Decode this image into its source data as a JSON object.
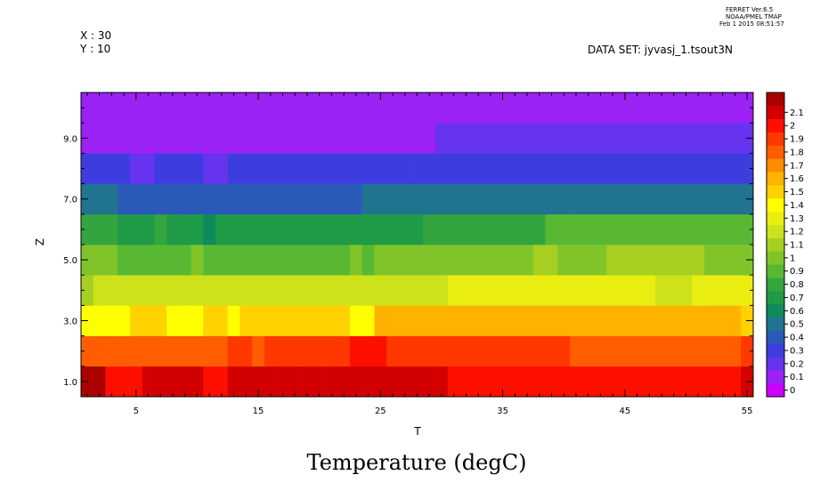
{
  "header": {
    "ferret_line1": "FERRET  Ver.6.5",
    "ferret_line2": "NOAA/PMEL TMAP",
    "ferret_line3": "Feb  1 2015 08:51:57",
    "x_label": "X : 30",
    "y_label": "Y : 10",
    "dataset": "DATA SET: jyvasj_1.tsout3N"
  },
  "chart_data": {
    "type": "heatmap",
    "title": "Temperature (degC)",
    "xlabel": "T",
    "ylabel": "Z",
    "xlim": [
      0.5,
      55.5
    ],
    "ylim": [
      0.5,
      10.5
    ],
    "x_ticks": [
      "5",
      "15",
      "25",
      "35",
      "45",
      "55"
    ],
    "x_tick_values": [
      5,
      15,
      25,
      35,
      45,
      55
    ],
    "y_ticks": [
      "1.0",
      "3.0",
      "5.0",
      "7.0",
      "9.0"
    ],
    "y_tick_values": [
      1,
      3,
      5,
      7,
      9
    ],
    "colorbar": {
      "labels": [
        "0",
        "0.1",
        "0.2",
        "0.3",
        "0.4",
        "0.5",
        "0.6",
        "0.7",
        "0.8",
        "0.9",
        "1",
        "1.1",
        "1.2",
        "1.3",
        "1.4",
        "1.5",
        "1.6",
        "1.7",
        "1.8",
        "1.9",
        "2",
        "2.1"
      ],
      "colors": [
        "#cc00ff",
        "#9a22f4",
        "#6633ee",
        "#3d3ddf",
        "#2b59b8",
        "#20748f",
        "#0f8a5c",
        "#1f9a47",
        "#34a53e",
        "#58b833",
        "#80c42a",
        "#a6cf22",
        "#cde21a",
        "#eaee10",
        "#ffff00",
        "#ffd200",
        "#ffb300",
        "#ff8c00",
        "#ff5d00",
        "#ff3800",
        "#ff0f00",
        "#d20000",
        "#aa0000"
      ]
    },
    "rows": [
      {
        "z": 1,
        "runs": [
          [
            1,
            2,
            2.1
          ],
          [
            3,
            5,
            1.95
          ],
          [
            6,
            10,
            2.0
          ],
          [
            11,
            12,
            1.95
          ],
          [
            13,
            16,
            2.0
          ],
          [
            17,
            18,
            2.05
          ],
          [
            19,
            20,
            2.0
          ],
          [
            21,
            22,
            2.05
          ],
          [
            23,
            30,
            2.0
          ],
          [
            31,
            36,
            1.95
          ],
          [
            37,
            42,
            1.9
          ],
          [
            43,
            44,
            1.95
          ],
          [
            45,
            45,
            1.9
          ],
          [
            46,
            55,
            1.95
          ],
          [
            55,
            55,
            2.05
          ]
        ]
      },
      {
        "z": 2,
        "runs": [
          [
            1,
            3,
            1.75
          ],
          [
            4,
            4,
            1.7
          ],
          [
            5,
            12,
            1.75
          ],
          [
            13,
            14,
            1.8
          ],
          [
            15,
            15,
            1.75
          ],
          [
            16,
            20,
            1.8
          ],
          [
            21,
            21,
            1.85
          ],
          [
            22,
            22,
            1.8
          ],
          [
            23,
            25,
            1.9
          ],
          [
            26,
            40,
            1.8
          ],
          [
            41,
            47,
            1.75
          ],
          [
            48,
            54,
            1.7
          ],
          [
            55,
            55,
            1.8
          ]
        ]
      },
      {
        "z": 3,
        "runs": [
          [
            1,
            1,
            1.35
          ],
          [
            2,
            3,
            1.3
          ],
          [
            4,
            4,
            1.35
          ],
          [
            5,
            7,
            1.45
          ],
          [
            8,
            10,
            1.35
          ],
          [
            11,
            12,
            1.45
          ],
          [
            13,
            13,
            1.35
          ],
          [
            14,
            21,
            1.4
          ],
          [
            22,
            22,
            1.45
          ],
          [
            23,
            24,
            1.35
          ],
          [
            25,
            54,
            1.5
          ],
          [
            55,
            55,
            1.4
          ]
        ]
      },
      {
        "z": 4,
        "runs": [
          [
            1,
            1,
            1.05
          ],
          [
            2,
            10,
            1.1
          ],
          [
            11,
            12,
            1.15
          ],
          [
            13,
            13,
            1.1
          ],
          [
            14,
            15,
            1.15
          ],
          [
            16,
            17,
            1.1
          ],
          [
            18,
            20,
            1.15
          ],
          [
            21,
            22,
            1.1
          ],
          [
            23,
            30,
            1.15
          ],
          [
            31,
            38,
            1.2
          ],
          [
            39,
            42,
            1.25
          ],
          [
            43,
            47,
            1.2
          ],
          [
            48,
            50,
            1.15
          ],
          [
            51,
            55,
            1.2
          ]
        ]
      },
      {
        "z": 5,
        "runs": [
          [
            1,
            3,
            0.9
          ],
          [
            4,
            9,
            0.85
          ],
          [
            10,
            10,
            0.9
          ],
          [
            11,
            22,
            0.85
          ],
          [
            23,
            23,
            0.9
          ],
          [
            24,
            24,
            0.85
          ],
          [
            25,
            34,
            0.9
          ],
          [
            35,
            37,
            0.95
          ],
          [
            38,
            39,
            1.0
          ],
          [
            40,
            43,
            0.95
          ],
          [
            44,
            51,
            1.0
          ],
          [
            52,
            55,
            0.95
          ]
        ]
      },
      {
        "z": 6,
        "runs": [
          [
            1,
            3,
            0.7
          ],
          [
            4,
            6,
            0.6
          ],
          [
            7,
            7,
            0.7
          ],
          [
            8,
            10,
            0.6
          ],
          [
            11,
            11,
            0.55
          ],
          [
            12,
            28,
            0.6
          ],
          [
            29,
            33,
            0.7
          ],
          [
            34,
            38,
            0.75
          ],
          [
            39,
            55,
            0.8
          ]
        ]
      },
      {
        "z": 7,
        "runs": [
          [
            1,
            3,
            0.4
          ],
          [
            4,
            8,
            0.35
          ],
          [
            9,
            11,
            0.3
          ],
          [
            12,
            23,
            0.35
          ],
          [
            24,
            40,
            0.4
          ],
          [
            41,
            44,
            0.45
          ],
          [
            45,
            54,
            0.4
          ],
          [
            55,
            55,
            0.45
          ]
        ]
      },
      {
        "z": 8,
        "runs": [
          [
            1,
            4,
            0.2
          ],
          [
            5,
            6,
            0.15
          ],
          [
            7,
            10,
            0.2
          ],
          [
            11,
            12,
            0.15
          ],
          [
            13,
            27,
            0.2
          ],
          [
            28,
            55,
            0.25
          ]
        ]
      },
      {
        "z": 9,
        "runs": [
          [
            1,
            29,
            0.05
          ],
          [
            30,
            36,
            0.1
          ],
          [
            37,
            55,
            0.15
          ]
        ]
      },
      {
        "z": 10,
        "runs": [
          [
            1,
            55,
            0.05
          ]
        ]
      }
    ]
  }
}
